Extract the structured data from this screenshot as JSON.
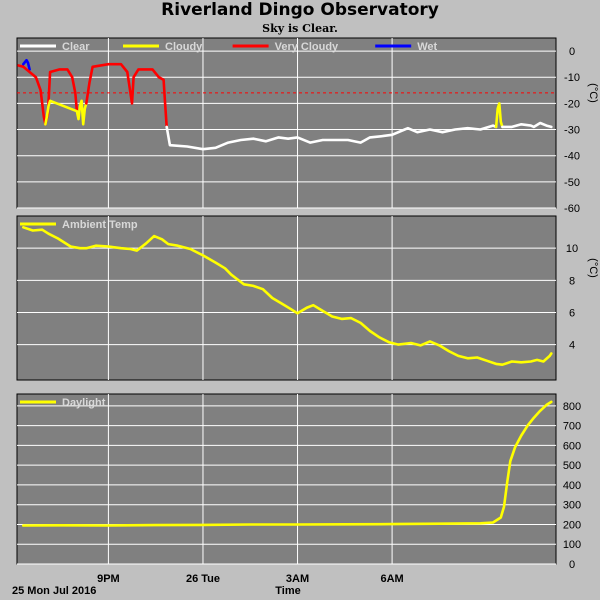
{
  "header": {
    "title": "Riverland Dingo Observatory",
    "subtitle": "Sky is Clear."
  },
  "footer": {
    "date_label": "25 Mon Jul 2016",
    "time_label": "Time"
  },
  "colors": {
    "background": "#c0c0c0",
    "plot_background": "#808080",
    "grid": "#ffffff",
    "clear": "#ffffff",
    "cloudy": "#ffff00",
    "very_cloudy": "#ff0000",
    "wet": "#0000ff",
    "threshold_line": "#ff0000",
    "temp": "#ffff00",
    "daylight": "#ffff00"
  },
  "chart_data": [
    {
      "type": "line",
      "name": "sky",
      "legend": [
        "Clear",
        "Cloudy",
        "Very Cloudy",
        "Wet"
      ],
      "ylabel": "(°C)",
      "ylim": [
        -60,
        5
      ],
      "yticks": [
        0,
        -10,
        -20,
        -30,
        -40,
        -50,
        -60
      ],
      "threshold": -16,
      "grid": true,
      "series": [
        {
          "name": "Wet",
          "points": [
            [
              18.3,
              -5
            ],
            [
              18.4,
              -3.5
            ],
            [
              18.45,
              -4.5
            ],
            [
              18.5,
              -7
            ]
          ]
        },
        {
          "name": "Very Cloudy",
          "points": [
            [
              18.15,
              -5.5
            ],
            [
              18.3,
              -6
            ],
            [
              18.5,
              -8
            ],
            [
              18.7,
              -10
            ],
            [
              18.85,
              -15
            ],
            [
              18.95,
              -25
            ],
            [
              19.0,
              -28
            ],
            [
              19.08,
              -24
            ],
            [
              19.15,
              -8
            ],
            [
              19.45,
              -7
            ],
            [
              19.7,
              -7
            ],
            [
              19.85,
              -10
            ],
            [
              19.95,
              -16
            ],
            [
              20.0,
              -23
            ]
          ]
        },
        {
          "name": "Cloudy",
          "points": [
            [
              19.0,
              -28
            ],
            [
              19.05,
              -25
            ],
            [
              19.1,
              -21
            ],
            [
              19.15,
              -19
            ],
            [
              20.0,
              -23
            ],
            [
              20.05,
              -26
            ],
            [
              20.1,
              -21
            ],
            [
              20.15,
              -19
            ],
            [
              20.2,
              -28
            ],
            [
              20.25,
              -22
            ],
            [
              20.3,
              -20
            ]
          ]
        },
        {
          "name": "Very Cloudy",
          "points": [
            [
              20.3,
              -20
            ],
            [
              20.4,
              -12
            ],
            [
              20.5,
              -6
            ],
            [
              21.0,
              -5
            ],
            [
              21.4,
              -5
            ],
            [
              21.6,
              -8
            ],
            [
              21.75,
              -20
            ],
            [
              21.8,
              -10
            ],
            [
              21.95,
              -7
            ],
            [
              22.4,
              -7
            ],
            [
              22.6,
              -10
            ],
            [
              22.75,
              -11
            ],
            [
              22.8,
              -20
            ],
            [
              22.85,
              -29
            ]
          ]
        },
        {
          "name": "Clear",
          "points": [
            [
              22.85,
              -29
            ],
            [
              22.95,
              -36
            ],
            [
              23.5,
              -36.5
            ],
            [
              24.0,
              -37.5
            ],
            [
              24.4,
              -37
            ],
            [
              24.8,
              -35
            ],
            [
              25.2,
              -34
            ],
            [
              25.6,
              -33.5
            ],
            [
              26.0,
              -34.5
            ],
            [
              26.4,
              -33
            ],
            [
              26.7,
              -33.5
            ],
            [
              27.0,
              -33
            ],
            [
              27.4,
              -35
            ],
            [
              27.8,
              -34
            ],
            [
              28.2,
              -34
            ],
            [
              28.6,
              -34
            ],
            [
              29.0,
              -35
            ],
            [
              29.3,
              -33
            ],
            [
              29.7,
              -32.5
            ],
            [
              30.0,
              -32
            ],
            [
              30.4,
              -30
            ],
            [
              30.5,
              -29.5
            ],
            [
              30.8,
              -31
            ],
            [
              31.2,
              -30
            ],
            [
              31.6,
              -31
            ],
            [
              32.0,
              -30
            ],
            [
              32.4,
              -29.5
            ],
            [
              32.8,
              -30
            ],
            [
              33.2,
              -28.5
            ],
            [
              33.3,
              -29
            ]
          ]
        },
        {
          "name": "Cloudy",
          "points": [
            [
              33.3,
              -29
            ],
            [
              33.35,
              -22
            ],
            [
              33.4,
              -20
            ],
            [
              33.45,
              -27
            ],
            [
              33.5,
              -29
            ]
          ]
        },
        {
          "name": "Clear",
          "points": [
            [
              33.5,
              -29
            ],
            [
              33.8,
              -29
            ],
            [
              34.1,
              -28
            ],
            [
              34.4,
              -28.5
            ],
            [
              34.5,
              -29
            ],
            [
              34.7,
              -27.5
            ],
            [
              34.9,
              -28.5
            ],
            [
              35.05,
              -29
            ]
          ]
        }
      ]
    },
    {
      "type": "line",
      "name": "ambient-temp",
      "legend": [
        "Ambient Temp"
      ],
      "ylabel": "(°C)",
      "ylim": [
        1.8,
        12
      ],
      "yticks": [
        4,
        6,
        8,
        10
      ],
      "grid": true,
      "series": [
        {
          "name": "Ambient Temp",
          "points": [
            [
              18.3,
              11.3
            ],
            [
              18.6,
              11.1
            ],
            [
              18.9,
              11.15
            ],
            [
              19.1,
              10.9
            ],
            [
              19.4,
              10.6
            ],
            [
              19.8,
              10.1
            ],
            [
              20.1,
              10
            ],
            [
              20.3,
              10
            ],
            [
              20.6,
              10.15
            ],
            [
              21.0,
              10.1
            ],
            [
              21.4,
              10
            ],
            [
              21.7,
              9.95
            ],
            [
              21.9,
              9.85
            ],
            [
              22.2,
              10.3
            ],
            [
              22.45,
              10.75
            ],
            [
              22.7,
              10.55
            ],
            [
              22.9,
              10.25
            ],
            [
              23.2,
              10.15
            ],
            [
              23.6,
              9.95
            ],
            [
              24.0,
              9.55
            ],
            [
              24.4,
              9.1
            ],
            [
              24.7,
              8.75
            ],
            [
              24.9,
              8.35
            ],
            [
              25.1,
              8.05
            ],
            [
              25.3,
              7.75
            ],
            [
              25.6,
              7.65
            ],
            [
              25.9,
              7.45
            ],
            [
              26.2,
              6.9
            ],
            [
              26.5,
              6.55
            ],
            [
              26.8,
              6.2
            ],
            [
              27.0,
              5.95
            ],
            [
              27.3,
              6.3
            ],
            [
              27.5,
              6.45
            ],
            [
              27.8,
              6.1
            ],
            [
              28.1,
              5.75
            ],
            [
              28.4,
              5.6
            ],
            [
              28.7,
              5.65
            ],
            [
              29.0,
              5.35
            ],
            [
              29.3,
              4.85
            ],
            [
              29.6,
              4.45
            ],
            [
              29.9,
              4.15
            ],
            [
              30.2,
              4.0
            ],
            [
              30.6,
              4.1
            ],
            [
              30.9,
              3.95
            ],
            [
              31.2,
              4.2
            ],
            [
              31.5,
              3.95
            ],
            [
              31.8,
              3.6
            ],
            [
              32.1,
              3.3
            ],
            [
              32.4,
              3.15
            ],
            [
              32.7,
              3.2
            ],
            [
              33.0,
              3.0
            ],
            [
              33.3,
              2.8
            ],
            [
              33.5,
              2.75
            ],
            [
              33.8,
              2.95
            ],
            [
              34.1,
              2.9
            ],
            [
              34.4,
              2.95
            ],
            [
              34.6,
              3.05
            ],
            [
              34.8,
              2.95
            ],
            [
              35.0,
              3.3
            ],
            [
              35.05,
              3.45
            ]
          ]
        }
      ]
    },
    {
      "type": "line",
      "name": "daylight",
      "legend": [
        "Daylight"
      ],
      "ylim": [
        0,
        860
      ],
      "yticks": [
        0,
        100,
        200,
        300,
        400,
        500,
        600,
        700,
        800
      ],
      "xticks": [
        {
          "x": 21,
          "label": "9PM"
        },
        {
          "x": 24,
          "label": "26 Tue"
        },
        {
          "x": 27,
          "label": "3AM"
        },
        {
          "x": 30,
          "label": "6AM"
        }
      ],
      "xlim": [
        18.1,
        35.2
      ],
      "grid": true,
      "series": [
        {
          "name": "Daylight",
          "points": [
            [
              18.3,
              195
            ],
            [
              19.5,
              196
            ],
            [
              21.0,
              195
            ],
            [
              22.5,
              197
            ],
            [
              24.0,
              198
            ],
            [
              25.5,
              200
            ],
            [
              27.0,
              200
            ],
            [
              28.5,
              201
            ],
            [
              30.0,
              202
            ],
            [
              31.5,
              204
            ],
            [
              32.8,
              206
            ],
            [
              33.2,
              210
            ],
            [
              33.45,
              235
            ],
            [
              33.55,
              290
            ],
            [
              33.65,
              410
            ],
            [
              33.75,
              520
            ],
            [
              33.9,
              590
            ],
            [
              34.1,
              650
            ],
            [
              34.3,
              700
            ],
            [
              34.5,
              740
            ],
            [
              34.7,
              775
            ],
            [
              34.9,
              805
            ],
            [
              35.05,
              820
            ]
          ]
        }
      ]
    }
  ]
}
